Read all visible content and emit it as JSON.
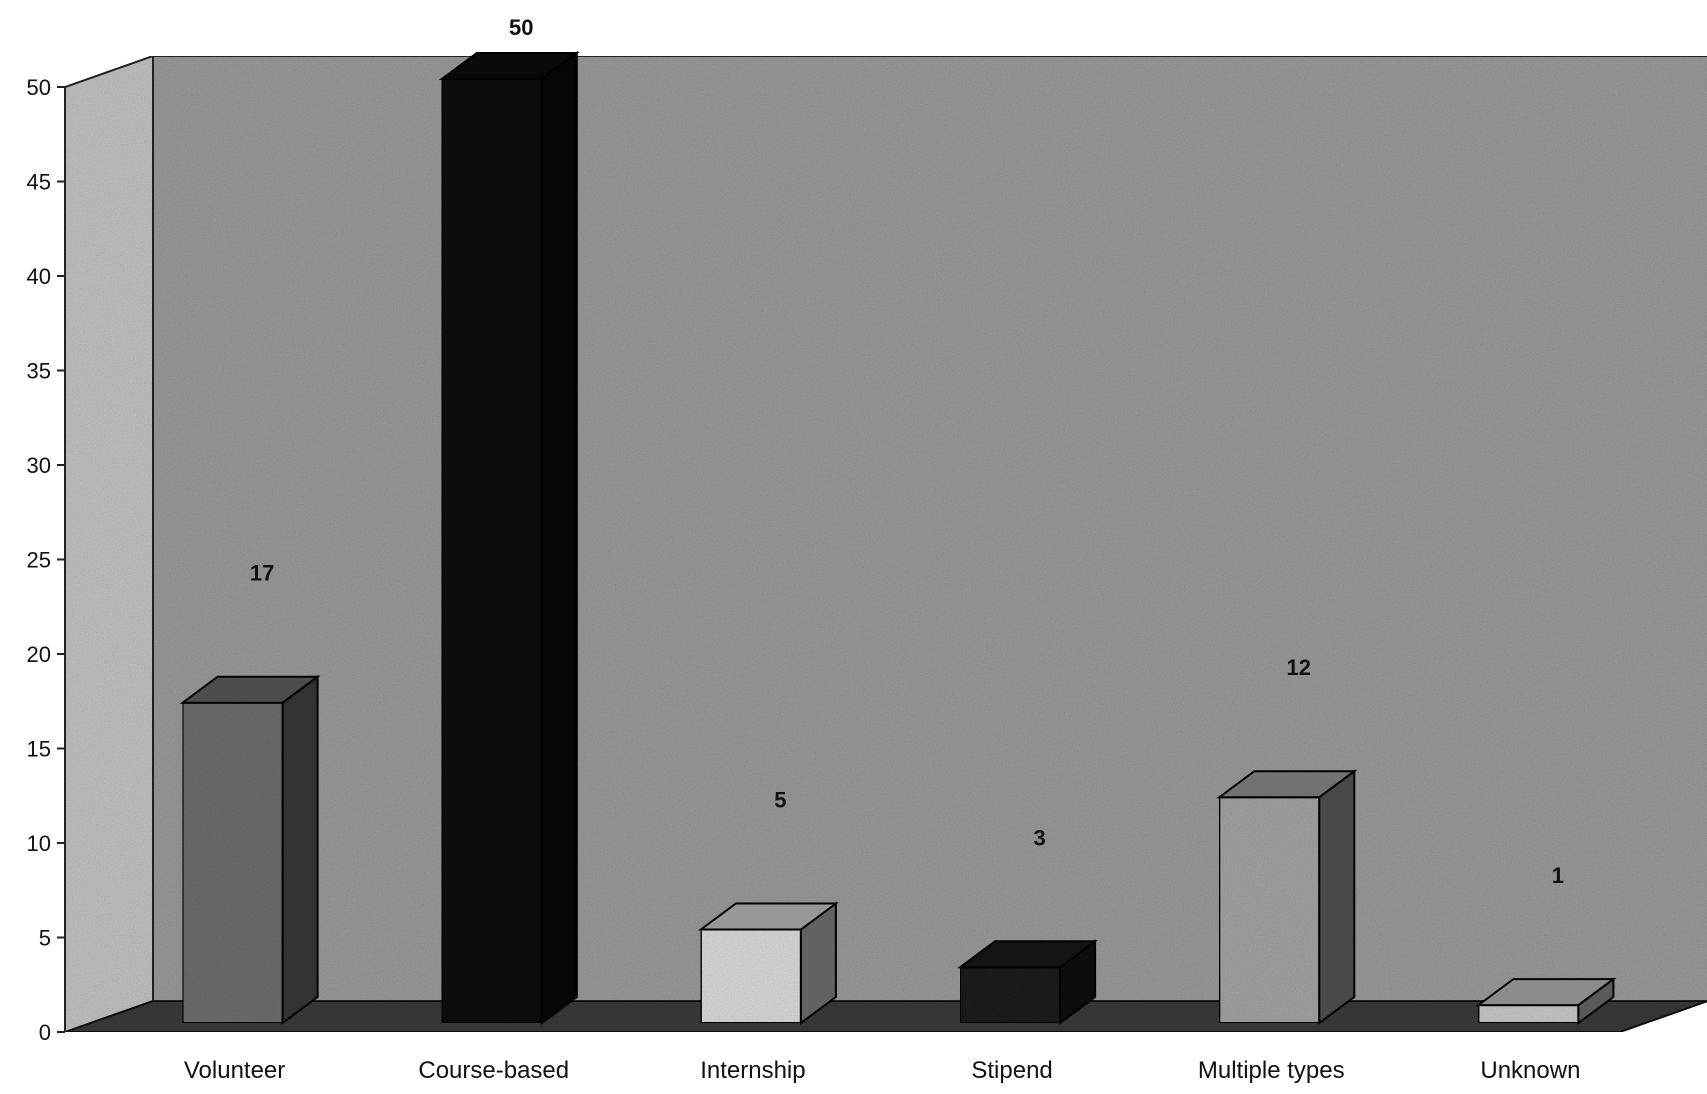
{
  "chart_data": {
    "type": "bar",
    "title": "",
    "xlabel": "",
    "ylabel": "",
    "categories": [
      "Volunteer",
      "Course-based",
      "Internship",
      "Stipend",
      "Multiple types",
      "Unknown"
    ],
    "values": [
      17,
      50,
      5,
      3,
      12,
      1
    ],
    "data_labels": [
      "17",
      "50",
      "5",
      "3",
      "12",
      "1"
    ],
    "ylim": [
      0,
      50
    ],
    "yticks": [
      0,
      5,
      10,
      15,
      20,
      25,
      30,
      35,
      40,
      45,
      50
    ],
    "grid": false,
    "legend": "none",
    "style": "3d-column",
    "colors": {
      "back_wall": "#9a9a9a",
      "side_wall": "#c2c2c2",
      "floor": "#3a3a3a",
      "bars": [
        "#6e6e6e",
        "#0d0d0d",
        "#d9d9d9",
        "#1c1c1c",
        "#a3a3a3",
        "#c8c8c8"
      ]
    }
  }
}
